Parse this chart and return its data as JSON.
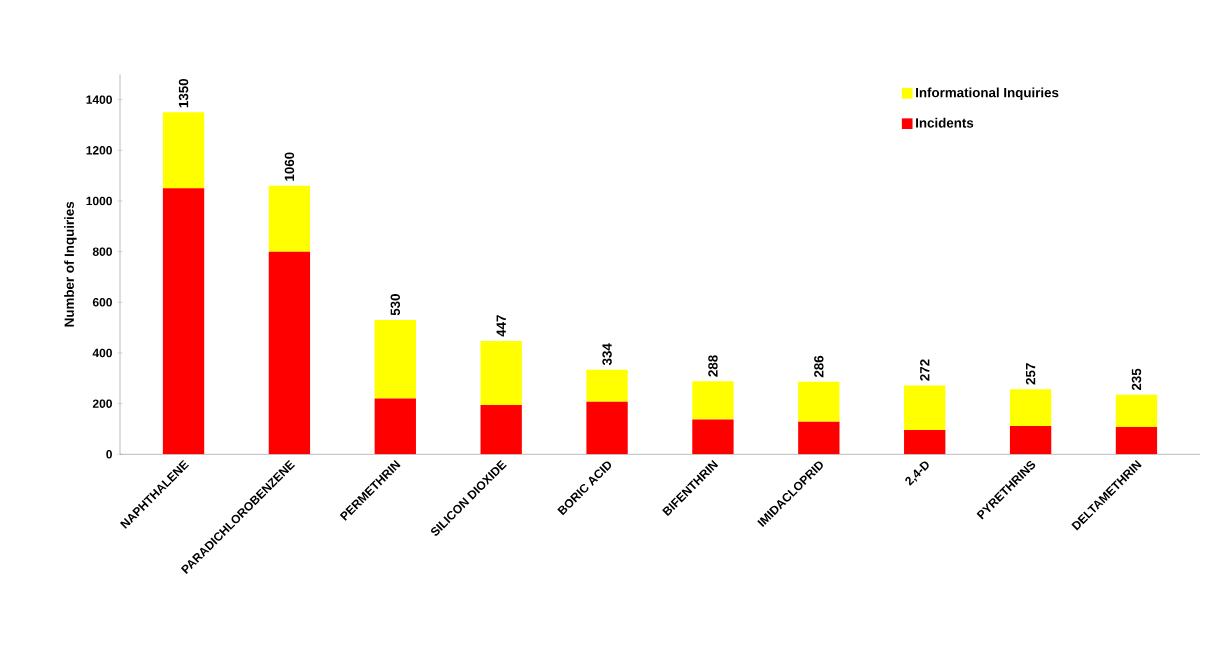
{
  "chart_data": {
    "type": "bar",
    "stacked": true,
    "ylabel": "Number of Inquiries",
    "categories": [
      "NAPHTHALENE",
      "PARADICHLOROBENZENE",
      "PERMETHRIN",
      "SILICON DIOXIDE",
      "BORIC ACID",
      "BIFENTHRIN",
      "IMIDACLOPRID",
      "2,4-D",
      "PYRETHRINS",
      "DELTAMETHRIN"
    ],
    "series": [
      {
        "name": "Incidents",
        "color": "#ff0000",
        "values": [
          1050,
          800,
          220,
          195,
          208,
          137,
          129,
          96,
          112,
          108
        ]
      },
      {
        "name": "Informational Inquiries",
        "color": "#ffff00",
        "values": [
          300,
          260,
          310,
          252,
          126,
          151,
          157,
          176,
          145,
          127
        ]
      }
    ],
    "totals": [
      "1350",
      "1060",
      "530",
      "447",
      "334",
      "288",
      "286",
      "272",
      "257",
      "235"
    ],
    "ylim": [
      0,
      1500
    ],
    "yticks": [
      0,
      200,
      400,
      600,
      800,
      1000,
      1200,
      1400
    ],
    "grid": false,
    "legend": "top right"
  }
}
